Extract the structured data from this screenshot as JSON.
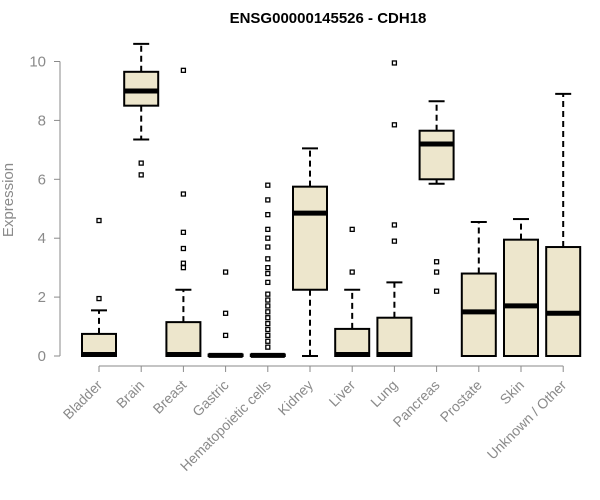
{
  "chart_data": {
    "type": "boxplot",
    "title": "ENSG00000145526 - CDH18",
    "xlabel": "",
    "ylabel": "Expression",
    "ylim": [
      0,
      10.5
    ],
    "yticks": [
      0,
      2,
      4,
      6,
      8,
      10
    ],
    "box_fill": "#ede6cc",
    "box_stroke": "#000000",
    "categories": [
      "Bladder",
      "Brain",
      "Breast",
      "Gastric",
      "Hematopoietic cells",
      "Kidney",
      "Liver",
      "Lung",
      "Pancreas",
      "Prostate",
      "Skin",
      "Unknown / Other"
    ],
    "boxes": [
      {
        "name": "Bladder",
        "q1": 0,
        "median": 0.05,
        "q3": 0.75,
        "whisker_low": 0,
        "whisker_high": 1.55,
        "outliers": [
          1.95,
          4.6
        ]
      },
      {
        "name": "Brain",
        "q1": 8.5,
        "median": 9.0,
        "q3": 9.65,
        "whisker_low": 7.35,
        "whisker_high": 10.6,
        "outliers": [
          6.55,
          6.15
        ]
      },
      {
        "name": "Breast",
        "q1": 0,
        "median": 0.05,
        "q3": 1.15,
        "whisker_low": 0,
        "whisker_high": 2.25,
        "outliers": [
          3.0,
          3.15,
          3.65,
          4.2,
          5.5,
          9.7
        ]
      },
      {
        "name": "Gastric",
        "q1": 0,
        "median": 0.02,
        "q3": 0.05,
        "whisker_low": 0,
        "whisker_high": 0.05,
        "outliers": [
          0.7,
          1.45,
          2.85
        ]
      },
      {
        "name": "Hematopoietic cells",
        "q1": 0,
        "median": 0.02,
        "q3": 0.05,
        "whisker_low": 0,
        "whisker_high": 0.05,
        "outliers": [
          0.3,
          0.5,
          0.7,
          0.9,
          1.1,
          1.3,
          1.5,
          1.7,
          1.9,
          2.1,
          2.5,
          2.8,
          3.0,
          3.3,
          3.7,
          4.0,
          4.3,
          4.8,
          5.3,
          5.8
        ]
      },
      {
        "name": "Kidney",
        "q1": 2.25,
        "median": 4.85,
        "q3": 5.75,
        "whisker_low": 0,
        "whisker_high": 7.05,
        "outliers": []
      },
      {
        "name": "Liver",
        "q1": 0,
        "median": 0.05,
        "q3": 0.92,
        "whisker_low": 0,
        "whisker_high": 2.25,
        "outliers": [
          2.85,
          4.3
        ]
      },
      {
        "name": "Lung",
        "q1": 0,
        "median": 0.05,
        "q3": 1.3,
        "whisker_low": 0,
        "whisker_high": 2.5,
        "outliers": [
          3.9,
          4.45,
          7.85,
          9.95
        ]
      },
      {
        "name": "Pancreas",
        "q1": 6.0,
        "median": 7.2,
        "q3": 7.65,
        "whisker_low": 5.85,
        "whisker_high": 8.65,
        "outliers": [
          3.2,
          2.85,
          2.2
        ]
      },
      {
        "name": "Prostate",
        "q1": 0,
        "median": 1.5,
        "q3": 2.8,
        "whisker_low": 0,
        "whisker_high": 4.55,
        "outliers": []
      },
      {
        "name": "Skin",
        "q1": 0,
        "median": 1.7,
        "q3": 3.95,
        "whisker_low": 0,
        "whisker_high": 4.65,
        "outliers": []
      },
      {
        "name": "Unknown / Other",
        "q1": 0,
        "median": 1.45,
        "q3": 3.7,
        "whisker_low": 0,
        "whisker_high": 8.9,
        "outliers": []
      }
    ]
  }
}
